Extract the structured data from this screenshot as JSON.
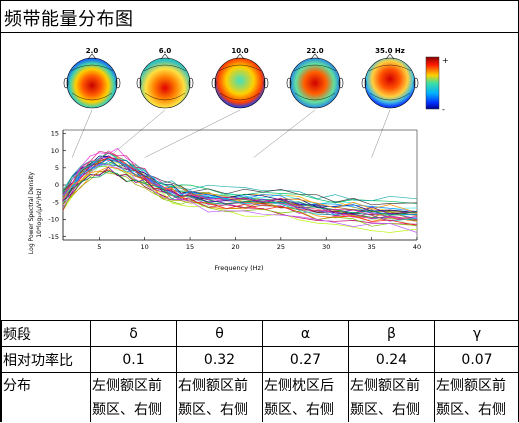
{
  "window": {
    "title": "频带能量分布图"
  },
  "chart_data": {
    "type": "line",
    "ylabel": "Log Power Spectral Density 10*log10(μV²/Hz)",
    "ylabel_line1": "Log Power Spectral Density",
    "ylabel_line2": "10*log₁₀(μV²/Hz)",
    "xlabel": "Frequency (Hz)",
    "xlim": [
      1,
      40
    ],
    "ylim": [
      -16,
      16
    ],
    "xticks": [
      5,
      10,
      15,
      20,
      25,
      30,
      35,
      40
    ],
    "yticks": [
      15,
      10,
      5,
      0,
      -5,
      -10,
      -15
    ],
    "topo_freqs": [
      "2.0",
      "6.0",
      "10.0",
      "22.0",
      "35.0 Hz"
    ],
    "topo_freq_values": [
      2,
      6,
      10,
      22,
      35
    ],
    "colorbar": {
      "plus": "+",
      "minus": "-"
    },
    "series_template_x": [
      1,
      2,
      3,
      4,
      5,
      6,
      7,
      8,
      9,
      10,
      11,
      12,
      13,
      14,
      15,
      17,
      19,
      21,
      23,
      25,
      27,
      29,
      31,
      33,
      35,
      37,
      40
    ],
    "series_template_y": [
      -4,
      0,
      3,
      5,
      6.5,
      7,
      6.5,
      5,
      3.5,
      2,
      0.5,
      -1,
      -2,
      -2.8,
      -3.3,
      -4,
      -4.5,
      -4.8,
      -5,
      -5,
      -6,
      -7,
      -7.5,
      -7.8,
      -8,
      -8.5,
      -9
    ]
  },
  "table": {
    "rows": [
      {
        "label": "频段",
        "values": [
          "δ",
          "θ",
          "α",
          "β",
          "γ"
        ]
      },
      {
        "label": "相对功率比",
        "values": [
          "0.1",
          "0.32",
          "0.27",
          "0.24",
          "0.07"
        ]
      },
      {
        "label": "分布",
        "values": [
          "左侧额区前颞区、右侧",
          "右侧额区前颞区、右侧",
          "左侧枕区后颞区、右侧",
          "左侧额区前颞区、右侧",
          "左侧额区前颞区、右侧"
        ]
      }
    ]
  },
  "colors": {
    "cold": "#1a3cff",
    "hot": "#e01010",
    "neutral": "#2ec4a0"
  }
}
